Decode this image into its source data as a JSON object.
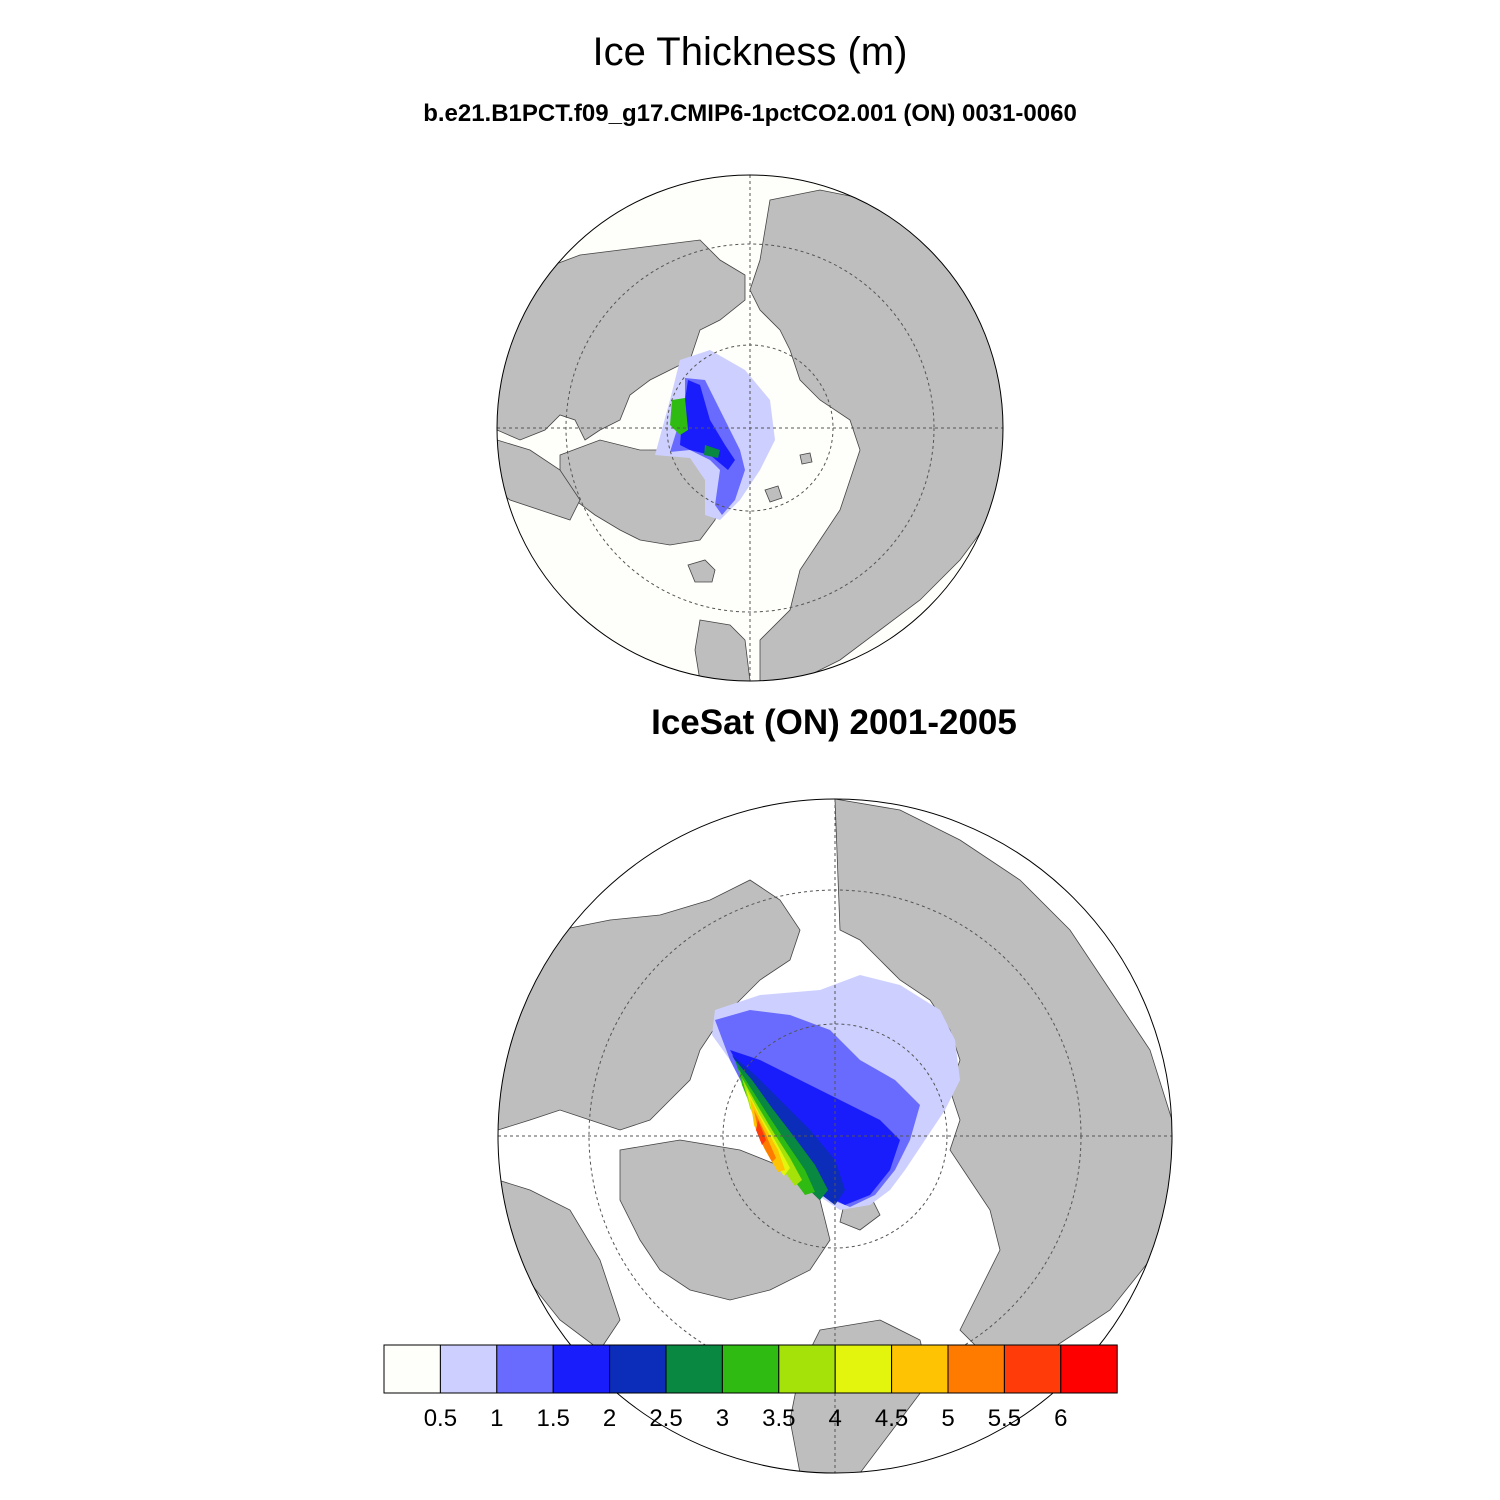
{
  "title": "Ice Thickness (m)",
  "subtitle": "b.e21.B1PCT.f09_g17.CMIP6-1pctCO2.001 (ON) 0031-0060",
  "panel2_title": "IceSat (ON) 2001-2005",
  "colorbar": {
    "colors": [
      "#fefefa",
      "#cdd0ff",
      "#686bfe",
      "#1a1dfb",
      "#0b2db9",
      "#088841",
      "#30bb12",
      "#a5e209",
      "#e3f50d",
      "#fec302",
      "#fe7b00",
      "#fe3b09",
      "#fe0000"
    ],
    "ticks": [
      "0.5",
      "1",
      "1.5",
      "2",
      "2.5",
      "3",
      "3.5",
      "4",
      "4.5",
      "5",
      "5.5",
      "6"
    ]
  },
  "colors": {
    "land": "#bebebe",
    "ocean": "#fefefa",
    "outline": "#000000"
  }
}
